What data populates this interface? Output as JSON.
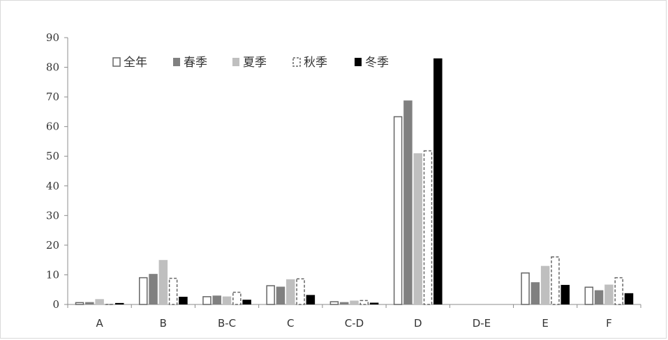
{
  "chart_data": {
    "type": "bar",
    "title": "",
    "xlabel": "",
    "ylabel": "",
    "ylim": [
      0,
      90
    ],
    "yticks": [
      0,
      10,
      20,
      30,
      40,
      50,
      60,
      70,
      80,
      90
    ],
    "grid": false,
    "legend_position": "top-left",
    "categories": [
      "A",
      "B",
      "B-C",
      "C",
      "C-D",
      "D",
      "D-E",
      "E",
      "F"
    ],
    "series": [
      {
        "name": "全年",
        "style": "hollow",
        "color": "#ffffff",
        "stroke": "#666666",
        "values": [
          0.8,
          9.2,
          2.8,
          6.5,
          1.1,
          63.5,
          0,
          10.8,
          6.0
        ]
      },
      {
        "name": "春季",
        "style": "filled",
        "color": "#808080",
        "stroke": "#808080",
        "values": [
          0.8,
          10.3,
          3.0,
          6.0,
          0.8,
          68.8,
          0,
          7.5,
          4.8
        ]
      },
      {
        "name": "夏季",
        "style": "filled",
        "color": "#bfbfbf",
        "stroke": "#bfbfbf",
        "values": [
          1.8,
          15.0,
          2.7,
          8.5,
          1.3,
          51.0,
          0,
          13.0,
          6.7
        ]
      },
      {
        "name": "秋季",
        "style": "dashed",
        "color": "#ffffff",
        "stroke": "#666666",
        "values": [
          0.2,
          9.0,
          4.3,
          8.8,
          1.5,
          52.0,
          0,
          16.2,
          9.2
        ]
      },
      {
        "name": "冬季",
        "style": "filled",
        "color": "#000000",
        "stroke": "#000000",
        "values": [
          0.5,
          2.6,
          1.6,
          3.2,
          0.6,
          83.0,
          0,
          6.6,
          3.8
        ]
      }
    ]
  }
}
